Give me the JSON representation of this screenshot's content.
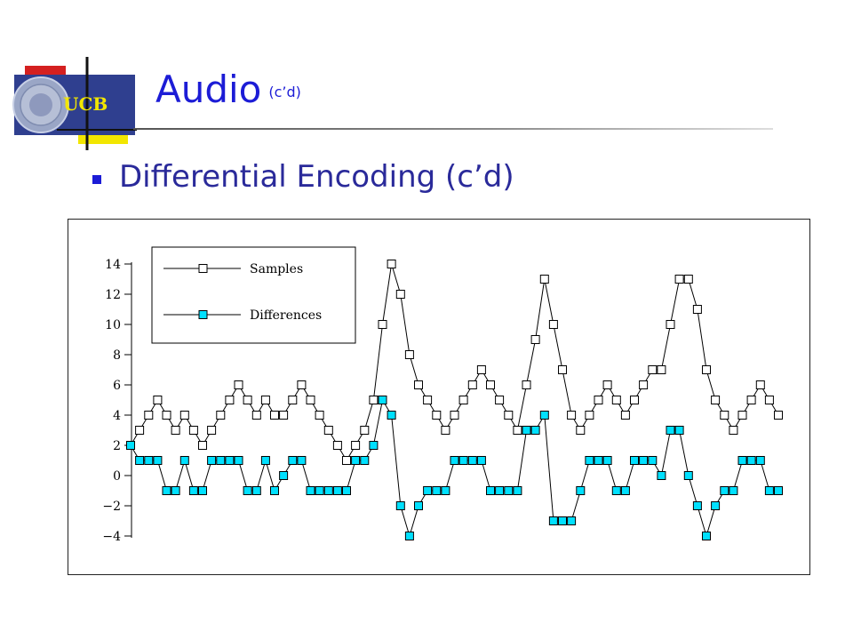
{
  "header": {
    "logo_text": "UCB",
    "title": "Audio",
    "title_suffix": "(c’d)"
  },
  "content": {
    "bullet": "Differential Encoding (c’d)"
  },
  "chart_data": {
    "type": "line",
    "title": "",
    "xlabel": "",
    "ylabel": "",
    "ylim": [
      -4,
      14
    ],
    "y_ticks": [
      14,
      12,
      10,
      8,
      6,
      4,
      2,
      0,
      -2,
      -4
    ],
    "y_tick_labels": [
      "14",
      "12",
      "10",
      "8",
      "6",
      "4",
      "2",
      "0",
      "−2",
      "−4"
    ],
    "legend_position": "top-left",
    "series": [
      {
        "name": "Samples",
        "marker": "square-hollow",
        "color": "#000000",
        "values": [
          2,
          3,
          4,
          5,
          4,
          3,
          4,
          3,
          2,
          3,
          4,
          5,
          6,
          5,
          4,
          5,
          4,
          4,
          5,
          6,
          5,
          4,
          3,
          2,
          1,
          2,
          3,
          5,
          10,
          14,
          12,
          8,
          6,
          5,
          4,
          3,
          4,
          5,
          6,
          7,
          6,
          5,
          4,
          3,
          6,
          9,
          13,
          10,
          7,
          4,
          3,
          4,
          5,
          6,
          5,
          4,
          5,
          6,
          7,
          7,
          10,
          13,
          13,
          11,
          7,
          5,
          4,
          3,
          4,
          5,
          6,
          5,
          4
        ]
      },
      {
        "name": "Differences",
        "marker": "square-filled",
        "color": "#00e0ff",
        "values": [
          2,
          1,
          1,
          1,
          -1,
          -1,
          1,
          -1,
          -1,
          1,
          1,
          1,
          1,
          -1,
          -1,
          1,
          -1,
          0,
          1,
          1,
          -1,
          -1,
          -1,
          -1,
          -1,
          1,
          1,
          2,
          5,
          4,
          -2,
          -4,
          -2,
          -1,
          -1,
          -1,
          1,
          1,
          1,
          1,
          -1,
          -1,
          -1,
          -1,
          3,
          3,
          4,
          -3,
          -3,
          -3,
          -1,
          1,
          1,
          1,
          -1,
          -1,
          1,
          1,
          1,
          0,
          3,
          3,
          0,
          -2,
          -4,
          -2,
          -1,
          -1,
          1,
          1,
          1,
          -1,
          -1
        ]
      }
    ]
  }
}
